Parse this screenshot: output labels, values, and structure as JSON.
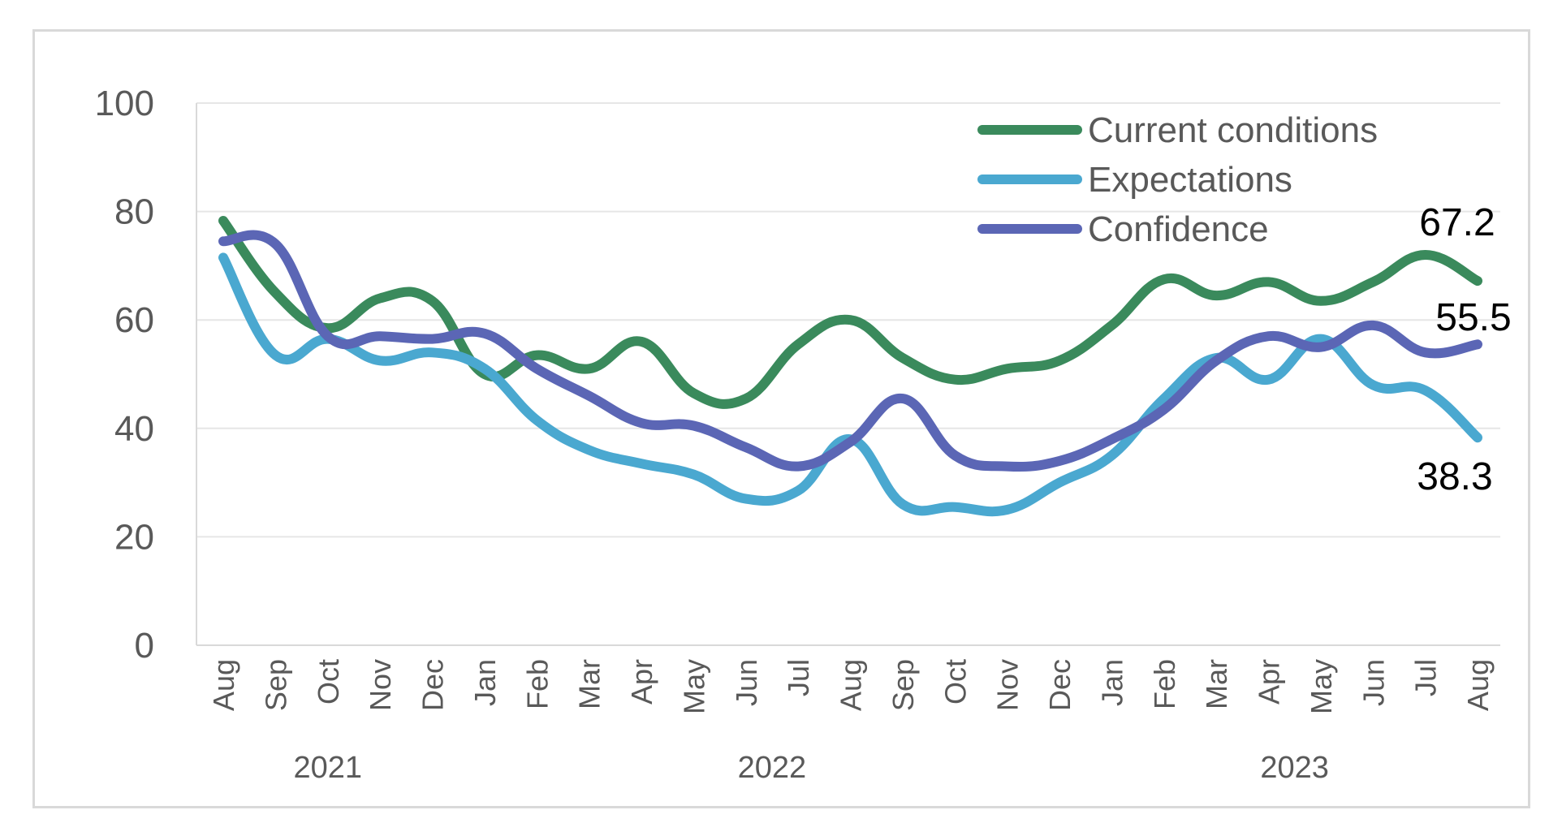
{
  "chart_data": {
    "type": "line",
    "ylim": [
      0,
      100
    ],
    "yticks": [
      "0",
      "20",
      "40",
      "60",
      "80",
      "100"
    ],
    "categories": [
      "Aug",
      "Sep",
      "Oct",
      "Nov",
      "Dec",
      "Jan",
      "Feb",
      "Mar",
      "Apr",
      "May",
      "Jun",
      "Jul",
      "Aug",
      "Sep",
      "Oct",
      "Nov",
      "Dec",
      "Jan",
      "Feb",
      "Mar",
      "Apr",
      "May",
      "Jun",
      "Jul",
      "Aug"
    ],
    "year_groups": [
      {
        "label": "2021",
        "start": 0,
        "end": 4
      },
      {
        "label": "2022",
        "start": 5,
        "end": 16
      },
      {
        "label": "2023",
        "start": 17,
        "end": 24
      }
    ],
    "grid": "horizontal",
    "legend_position": "top-right",
    "series": [
      {
        "name": "Current conditions",
        "color": "#3a8a5c",
        "values": [
          78.3,
          65.0,
          58.5,
          64.0,
          63.5,
          50.0,
          53.5,
          51.0,
          56.0,
          46.5,
          45.5,
          55.5,
          60.0,
          53.0,
          49.0,
          51.0,
          52.5,
          59.0,
          67.5,
          64.5,
          67.0,
          63.5,
          67.0,
          72.0,
          67.2
        ]
      },
      {
        "name": "Expectations",
        "color": "#4aa8d0",
        "values": [
          71.5,
          53.5,
          56.5,
          52.5,
          54.0,
          51.0,
          41.5,
          36.0,
          33.5,
          31.5,
          27.0,
          28.5,
          38.0,
          26.0,
          25.5,
          25.0,
          30.0,
          35.0,
          45.5,
          53.0,
          49.0,
          56.5,
          48.0,
          47.0,
          38.3
        ]
      },
      {
        "name": "Confidence",
        "color": "#5b66b5",
        "values": [
          74.5,
          74.0,
          57.0,
          57.0,
          56.5,
          57.5,
          51.0,
          46.0,
          41.0,
          40.5,
          36.5,
          33.0,
          37.5,
          45.5,
          35.0,
          33.0,
          34.0,
          38.0,
          43.5,
          52.5,
          57.0,
          55.0,
          59.0,
          54.0,
          55.5
        ]
      }
    ],
    "end_labels": [
      {
        "series": 0,
        "text": "67.2"
      },
      {
        "series": 2,
        "text": "55.5"
      },
      {
        "series": 1,
        "text": "38.3"
      }
    ]
  }
}
